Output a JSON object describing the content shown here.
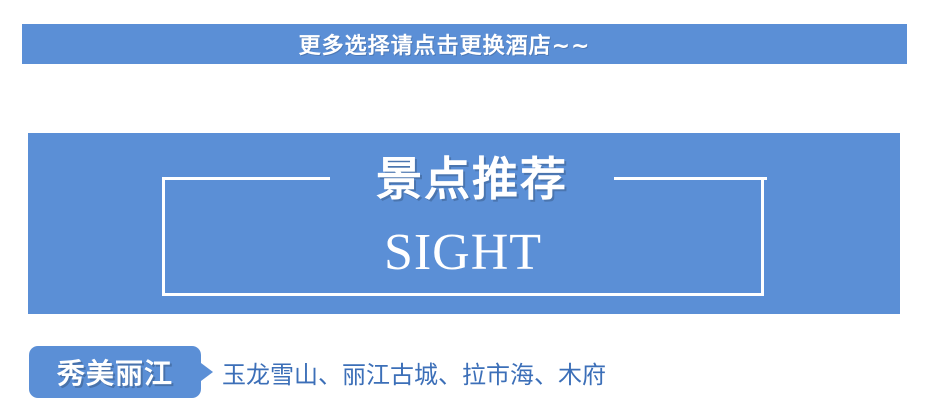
{
  "top_banner": {
    "text": "更多选择请点击更换酒店~~"
  },
  "sight": {
    "title_cn": "景点推荐",
    "title_en": "SIGHT"
  },
  "lijiang": {
    "tag": "秀美丽江",
    "attractions": "玉龙雪山、丽江古城、拉市海、木府"
  },
  "colors": {
    "accent": "#5b8fd6",
    "text_blue": "#3c6fb8",
    "background": "#ffffff"
  }
}
